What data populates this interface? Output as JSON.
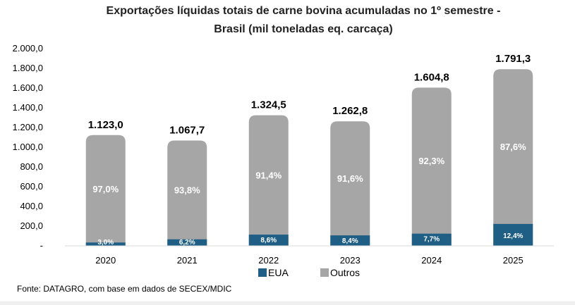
{
  "chart_data": {
    "type": "bar",
    "stacked": true,
    "title": "Exportações líquidas totais de carne bovina acumuladas no 1º semestre - Brasil (mil toneladas eq. carcaça)",
    "title_lines": [
      "Exportações líquidas totais de carne bovina acumuladas no 1º semestre -",
      "Brasil (mil toneladas eq. carcaça)"
    ],
    "categories": [
      "2020",
      "2021",
      "2022",
      "2023",
      "2024",
      "2025"
    ],
    "totals": [
      1123.0,
      1067.7,
      1324.5,
      1262.8,
      1604.8,
      1791.3
    ],
    "total_labels": [
      "1.123,0",
      "1.067,7",
      "1.324,5",
      "1.262,8",
      "1.604,8",
      "1.791,3"
    ],
    "series": [
      {
        "name": "EUA",
        "color": "#1f5f86",
        "share_pct": [
          3.0,
          6.2,
          8.6,
          8.4,
          7.7,
          12.4
        ],
        "share_labels": [
          "3,0%",
          "6,2%",
          "8,6%",
          "8,4%",
          "7,7%",
          "12,4%"
        ]
      },
      {
        "name": "Outros",
        "color": "#a6a6a6",
        "share_pct": [
          97.0,
          93.8,
          91.4,
          91.6,
          92.3,
          87.6
        ],
        "share_labels": [
          "97,0%",
          "93,8%",
          "91,4%",
          "91,6%",
          "92,3%",
          "87,6%"
        ]
      }
    ],
    "ylim": [
      0,
      2000
    ],
    "yticks": [
      0,
      200,
      400,
      600,
      800,
      1000,
      1200,
      1400,
      1600,
      1800,
      2000
    ],
    "ytick_labels": [
      "-",
      "200,0",
      "400,0",
      "600,0",
      "800,0",
      "1.000,0",
      "1.200,0",
      "1.400,0",
      "1.600,0",
      "1.800,0",
      "2.000,0"
    ],
    "xlabel": "",
    "ylabel": "",
    "grid": false,
    "legend_position": "bottom"
  },
  "source": "Fonte: DATAGRO, com base em dados de SECEX/MDIC"
}
